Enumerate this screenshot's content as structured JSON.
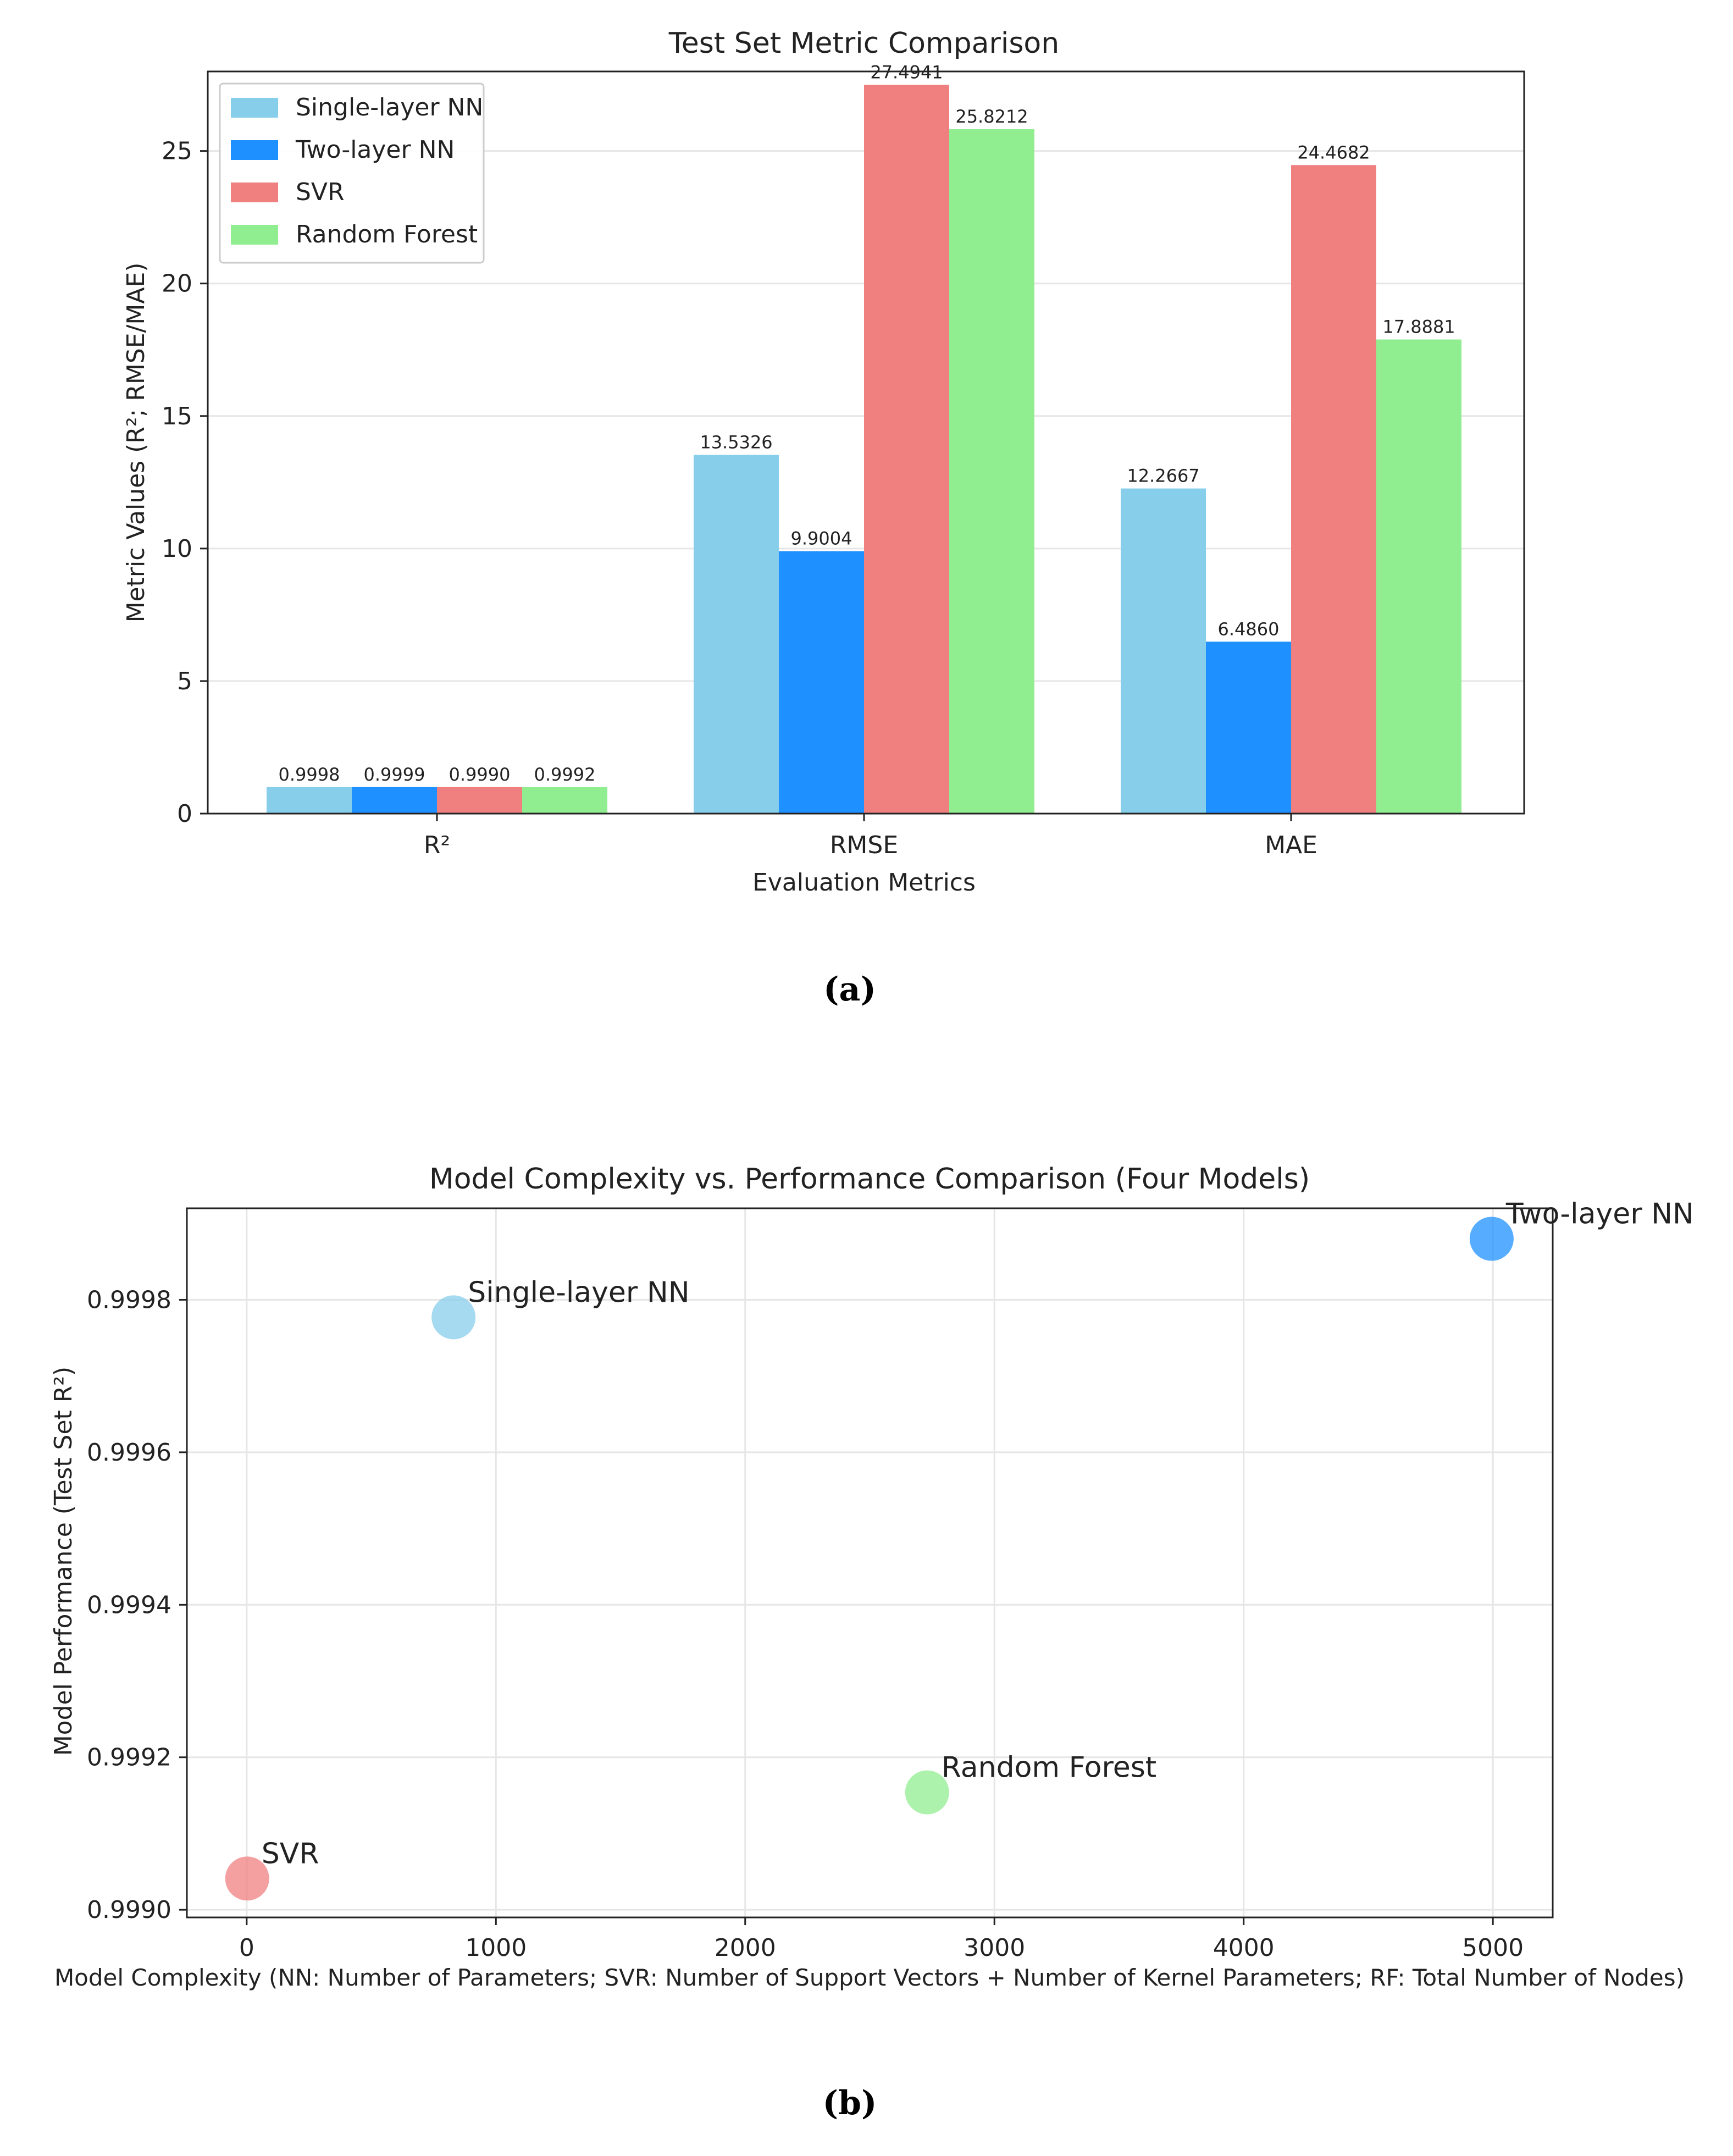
{
  "colors": {
    "single_layer_nn": "#87CEEB",
    "two_layer_nn": "#1E90FF",
    "svr": "#F08080",
    "random_forest": "#90EE90",
    "axis": "#222222",
    "grid": "#e6e6e6"
  },
  "captions": {
    "a": "(a)",
    "b": "(b)"
  },
  "chart_data": [
    {
      "type": "bar",
      "title": "Test Set Metric Comparison",
      "xlabel": "Evaluation Metrics",
      "ylabel": "Metric Values (R²; RMSE/MAE)",
      "categories": [
        "R²",
        "RMSE",
        "MAE"
      ],
      "ylim": [
        0,
        28
      ],
      "yticks": [
        0,
        5,
        10,
        15,
        20,
        25
      ],
      "grid": "horizontal",
      "legend_position": "top-left",
      "series": [
        {
          "name": "Single-layer NN",
          "values": [
            0.9998,
            13.5326,
            12.2667
          ],
          "labels": [
            "0.9998",
            "13.5326",
            "12.2667"
          ]
        },
        {
          "name": "Two-layer NN",
          "values": [
            0.9999,
            9.9004,
            6.486
          ],
          "labels": [
            "0.9999",
            "9.9004",
            "6.4860"
          ]
        },
        {
          "name": "SVR",
          "values": [
            0.999,
            27.4941,
            24.4682
          ],
          "labels": [
            "0.9990",
            "27.4941",
            "24.4682"
          ]
        },
        {
          "name": "Random Forest",
          "values": [
            0.9992,
            25.8212,
            17.8881
          ],
          "labels": [
            "0.9992",
            "25.8212",
            "17.8881"
          ]
        }
      ]
    },
    {
      "type": "scatter",
      "title": "Model Complexity vs. Performance Comparison (Four Models)",
      "xlabel": "Model Complexity (NN: Number of Parameters; SVR: Number of Support Vectors + Number of Kernel Parameters; RF: Total Number of Nodes)",
      "ylabel": "Model Performance (Test Set R²)",
      "xlim": [
        -240,
        5240
      ],
      "ylim": [
        0.99899,
        0.99992
      ],
      "xticks": [
        0,
        1000,
        2000,
        3000,
        4000,
        5000
      ],
      "yticks": [
        "0.9990",
        "0.9992",
        "0.9994",
        "0.9996",
        "0.9998"
      ],
      "grid": "both",
      "points": [
        {
          "name": "Single-layer NN",
          "x": 830,
          "y": 0.999777
        },
        {
          "name": "Two-layer NN",
          "x": 4995,
          "y": 0.99988
        },
        {
          "name": "SVR",
          "x": 2,
          "y": 0.999041
        },
        {
          "name": "Random Forest",
          "x": 2730,
          "y": 0.999154
        }
      ]
    }
  ]
}
